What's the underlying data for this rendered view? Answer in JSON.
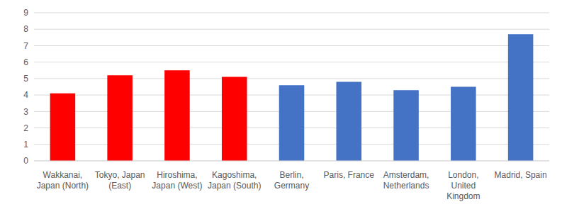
{
  "chart_data": {
    "type": "bar",
    "categories": [
      "Wakkanai, Japan (North)",
      "Tokyo, Japan (East)",
      "Hiroshima, Japan (West)",
      "Kagoshima, Japan (South)",
      "Berlin, Germany",
      "Paris, France",
      "Amsterdam, Netherlands",
      "London, United Kingdom",
      "Madrid, Spain"
    ],
    "values": [
      4.1,
      5.2,
      5.5,
      5.1,
      4.6,
      4.8,
      4.3,
      4.5,
      7.7
    ],
    "colors": [
      "#ff0000",
      "#ff0000",
      "#ff0000",
      "#ff0000",
      "#4472c4",
      "#4472c4",
      "#4472c4",
      "#4472c4",
      "#4472c4"
    ],
    "ylim": [
      0,
      9
    ],
    "yticks": [
      0,
      1,
      2,
      3,
      4,
      5,
      6,
      7,
      8,
      9
    ],
    "grid": true
  }
}
